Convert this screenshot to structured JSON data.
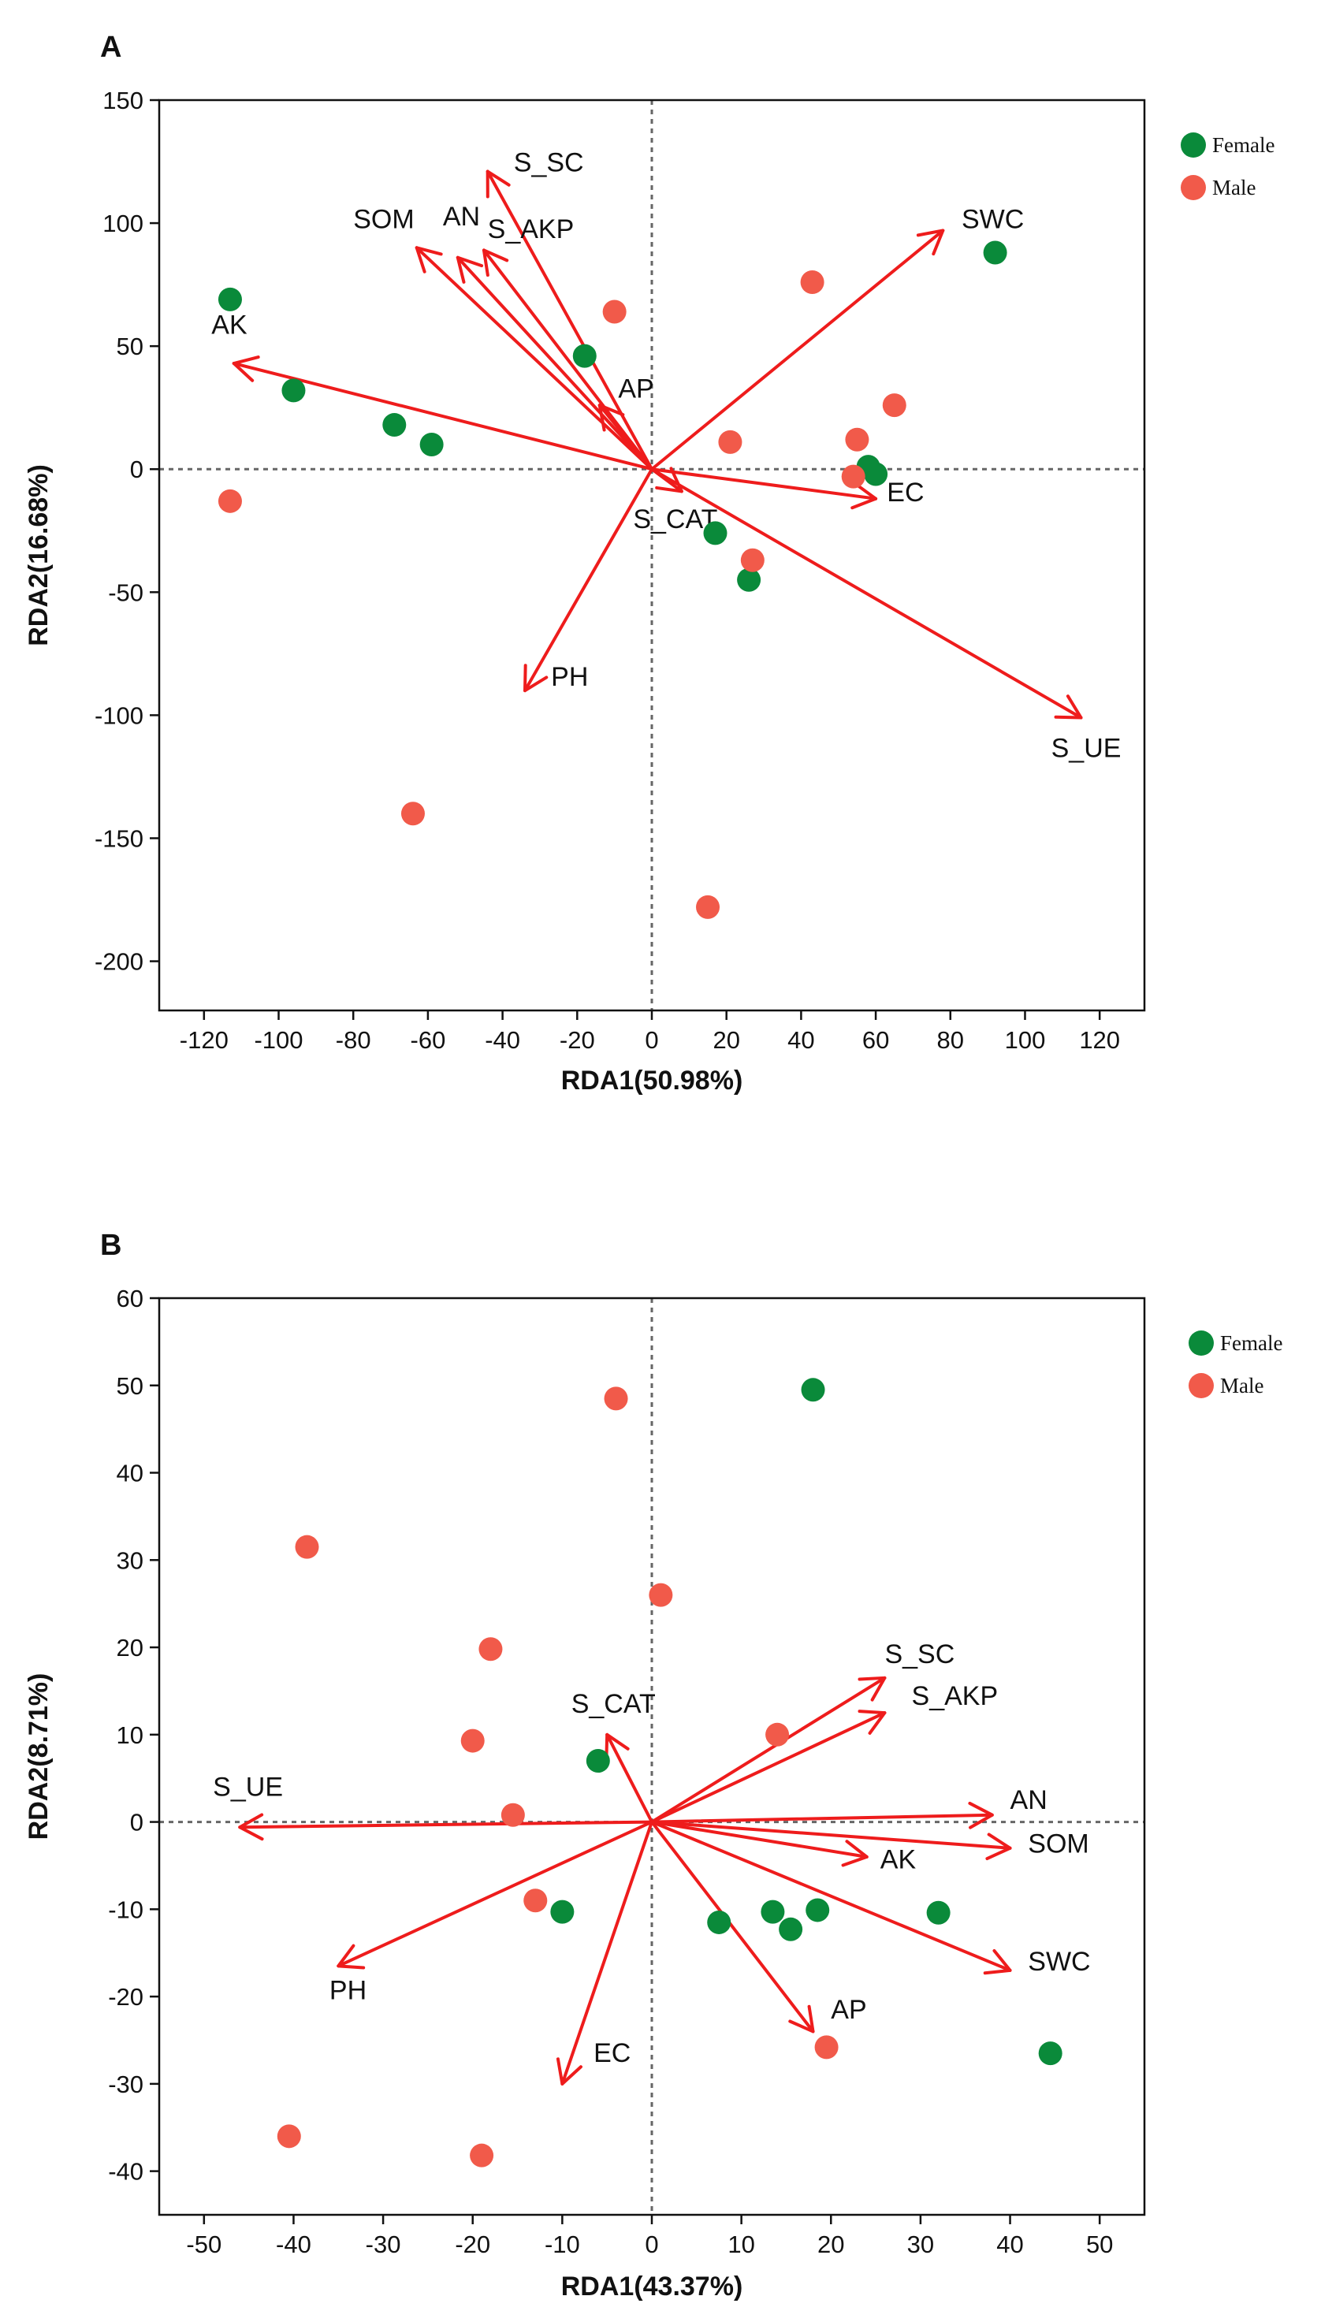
{
  "colors": {
    "female": "#0a8a3a",
    "male": "#f15a4a",
    "arrow": "#ee1c1c"
  },
  "chart_data": [
    {
      "type": "scatter",
      "panel_label": "A",
      "xlabel": "RDA1(50.98%)",
      "ylabel": "RDA2(16.68%)",
      "xlim": [
        -132,
        132
      ],
      "ylim": [
        -220,
        150
      ],
      "xticks": [
        -120,
        -100,
        -80,
        -60,
        -40,
        -20,
        0,
        20,
        40,
        60,
        80,
        100,
        120
      ],
      "yticks": [
        -200,
        -150,
        -100,
        -50,
        0,
        50,
        100,
        150
      ],
      "legend": {
        "position": "top-right",
        "entries": [
          "Female",
          "Male"
        ]
      },
      "series": [
        {
          "name": "Female",
          "points": [
            [
              -113,
              69
            ],
            [
              -96,
              32
            ],
            [
              -69,
              18
            ],
            [
              -59,
              10
            ],
            [
              -18,
              46
            ],
            [
              17,
              -26
            ],
            [
              26,
              -45
            ],
            [
              58,
              1
            ],
            [
              60,
              -2
            ],
            [
              92,
              88
            ]
          ]
        },
        {
          "name": "Male",
          "points": [
            [
              -113,
              -13
            ],
            [
              -64,
              -140
            ],
            [
              -10,
              64
            ],
            [
              15,
              -178
            ],
            [
              21,
              11
            ],
            [
              27,
              -37
            ],
            [
              43,
              76
            ],
            [
              54,
              -3
            ],
            [
              55,
              12
            ],
            [
              65,
              26
            ]
          ]
        }
      ],
      "vectors": [
        {
          "name": "AK",
          "x": -112,
          "y": 43,
          "label_x": -118,
          "label_y": 55
        },
        {
          "name": "S_SC",
          "x": -44,
          "y": 121,
          "label_x": -37,
          "label_y": 121
        },
        {
          "name": "SOM",
          "x": -63,
          "y": 90,
          "label_x": -80,
          "label_y": 98
        },
        {
          "name": "AN",
          "x": -52,
          "y": 86,
          "label_x": -56,
          "label_y": 99
        },
        {
          "name": "S_AKP",
          "x": -45,
          "y": 89,
          "label_x": -44,
          "label_y": 94
        },
        {
          "name": "AP",
          "x": -14,
          "y": 26,
          "label_x": -9,
          "label_y": 29
        },
        {
          "name": "SWC",
          "x": 78,
          "y": 97,
          "label_x": 83,
          "label_y": 98
        },
        {
          "name": "EC",
          "x": 60,
          "y": -12,
          "label_x": 63,
          "label_y": -13
        },
        {
          "name": "S_CAT",
          "x": 8,
          "y": -9,
          "label_x": -5,
          "label_y": -24
        },
        {
          "name": "PH",
          "x": -34,
          "y": -90,
          "label_x": -27,
          "label_y": -88
        },
        {
          "name": "S_UE",
          "x": 115,
          "y": -101,
          "label_x": 107,
          "label_y": -117
        }
      ]
    },
    {
      "type": "scatter",
      "panel_label": "B",
      "xlabel": "RDA1(43.37%)",
      "ylabel": "RDA2(8.71%)",
      "xlim": [
        -55,
        55
      ],
      "ylim": [
        -45,
        60
      ],
      "xticks": [
        -50,
        -40,
        -30,
        -20,
        -10,
        0,
        10,
        20,
        30,
        40,
        50
      ],
      "yticks": [
        -40,
        -30,
        -20,
        -10,
        0,
        10,
        20,
        30,
        40,
        50,
        60
      ],
      "legend": {
        "position": "top-right",
        "entries": [
          "Female",
          "Male"
        ]
      },
      "series": [
        {
          "name": "Female",
          "points": [
            [
              18,
              49.5
            ],
            [
              -6,
              7
            ],
            [
              -10,
              -10.3
            ],
            [
              7.5,
              -11.5
            ],
            [
              13.5,
              -10.3
            ],
            [
              15.5,
              -12.3
            ],
            [
              18.5,
              -10.1
            ],
            [
              32,
              -10.4
            ],
            [
              44.5,
              -26.5
            ]
          ]
        },
        {
          "name": "Male",
          "points": [
            [
              -4,
              48.5
            ],
            [
              1,
              26
            ],
            [
              -38.5,
              31.5
            ],
            [
              -18,
              19.8
            ],
            [
              -20,
              9.3
            ],
            [
              -15.5,
              0.8
            ],
            [
              -13,
              -9
            ],
            [
              14,
              10
            ],
            [
              19.5,
              -25.8
            ],
            [
              -40.5,
              -36
            ],
            [
              -19,
              -38.2
            ]
          ]
        }
      ],
      "vectors": [
        {
          "name": "S_UE",
          "x": -46,
          "y": -0.6,
          "label_x": -49,
          "label_y": 3
        },
        {
          "name": "S_CAT",
          "x": -5,
          "y": 10,
          "label_x": -9,
          "label_y": 12.5
        },
        {
          "name": "S_SC",
          "x": 26,
          "y": 16.5,
          "label_x": 26,
          "label_y": 18.2
        },
        {
          "name": "S_AKP",
          "x": 26,
          "y": 12.5,
          "label_x": 29,
          "label_y": 13.4
        },
        {
          "name": "AN",
          "x": 38,
          "y": 0.8,
          "label_x": 40,
          "label_y": 1.5
        },
        {
          "name": "SOM",
          "x": 40,
          "y": -3,
          "label_x": 42,
          "label_y": -3.5
        },
        {
          "name": "AK",
          "x": 24,
          "y": -4,
          "label_x": 25.5,
          "label_y": -5.3
        },
        {
          "name": "SWC",
          "x": 40,
          "y": -17,
          "label_x": 42,
          "label_y": -17
        },
        {
          "name": "AP",
          "x": 18,
          "y": -24,
          "label_x": 20,
          "label_y": -22.5
        },
        {
          "name": "EC",
          "x": -10,
          "y": -30,
          "label_x": -6.5,
          "label_y": -27.5
        },
        {
          "name": "PH",
          "x": -35,
          "y": -16.5,
          "label_x": -36,
          "label_y": -20.3
        }
      ]
    }
  ]
}
